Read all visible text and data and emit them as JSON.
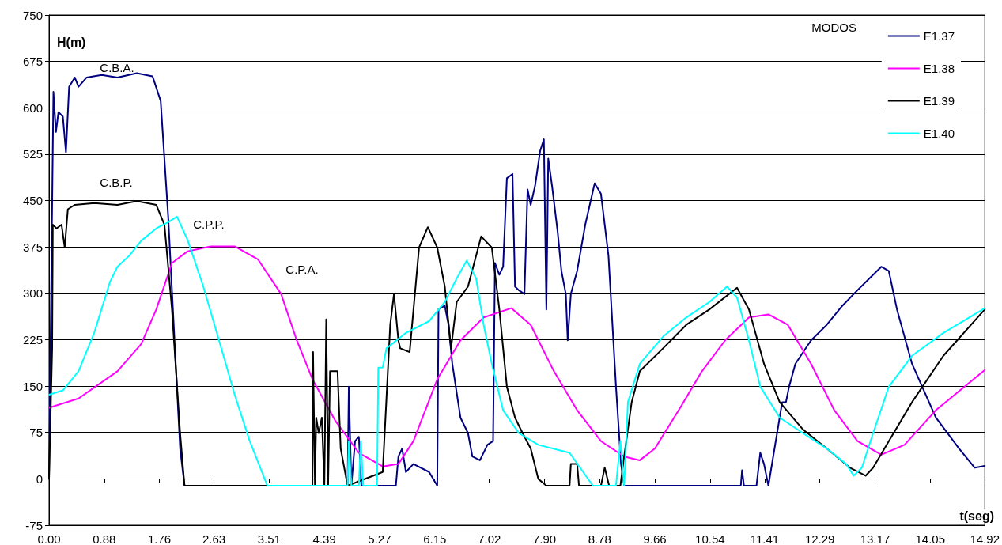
{
  "chart_data": {
    "type": "line",
    "xlabel": "t(seg)",
    "ylabel": "H(m)",
    "legend_title": "MODOS",
    "legend": "top right",
    "grid": "y",
    "marker": "none",
    "line_style": "solid",
    "xlim": [
      0,
      14.92
    ],
    "ylim": [
      -75,
      750
    ],
    "xticks": [
      {
        "value": 0,
        "label": "0.00"
      },
      {
        "value": 0.88,
        "label": "0.88"
      },
      {
        "value": 1.76,
        "label": "1.76"
      },
      {
        "value": 2.63,
        "label": "2.63"
      },
      {
        "value": 3.51,
        "label": "3.51"
      },
      {
        "value": 4.39,
        "label": "4.39"
      },
      {
        "value": 5.27,
        "label": "5.27"
      },
      {
        "value": 6.15,
        "label": "6.15"
      },
      {
        "value": 7.02,
        "label": "7.02"
      },
      {
        "value": 7.9,
        "label": "7.90"
      },
      {
        "value": 8.78,
        "label": "8.78"
      },
      {
        "value": 9.66,
        "label": "9.66"
      },
      {
        "value": 10.54,
        "label": "10.54"
      },
      {
        "value": 11.41,
        "label": "11.41"
      },
      {
        "value": 12.29,
        "label": "12.29"
      },
      {
        "value": 13.17,
        "label": "13.17"
      },
      {
        "value": 14.05,
        "label": "14.05"
      },
      {
        "value": 14.92,
        "label": "14.92"
      }
    ],
    "yticks": [
      -75,
      0,
      75,
      150,
      225,
      300,
      375,
      450,
      525,
      600,
      675,
      750
    ],
    "annotations": [
      "C.B.A.",
      "C.B.P.",
      "C.P.P.",
      "C.P.A."
    ],
    "series": [
      {
        "name": "E1.37",
        "color": "#000080",
        "x": [
          0,
          0.07,
          0.11,
          0.15,
          0.22,
          0.27,
          0.32,
          0.41,
          0.47,
          0.6,
          0.84,
          1.09,
          1.4,
          1.65,
          1.78,
          1.9,
          2.02,
          2.09,
          2.16,
          4.76,
          4.78,
          4.82,
          4.88,
          4.94,
          4.98,
          5.53,
          5.57,
          5.63,
          5.69,
          5.81,
          6.06,
          6.19,
          6.21,
          6.31,
          6.37,
          6.43,
          6.56,
          6.68,
          6.75,
          6.87,
          6.99,
          7.08,
          7.11,
          7.18,
          7.24,
          7.3,
          7.39,
          7.43,
          7.49,
          7.58,
          7.63,
          7.68,
          7.75,
          7.83,
          7.89,
          7.93,
          7.96,
          8.02,
          8.11,
          8.17,
          8.24,
          8.27,
          8.32,
          8.42,
          8.55,
          8.7,
          8.8,
          8.92,
          9.04,
          9.12,
          9.17,
          11.03,
          11.05,
          11.08,
          11.28,
          11.34,
          11.4,
          11.47,
          11.69,
          11.75,
          11.8,
          11.9,
          12.15,
          12.4,
          12.65,
          12.89,
          13.27,
          13.39,
          13.52,
          13.76,
          14.14,
          14.51,
          14.76,
          14.92
        ],
        "values": [
          0,
          626,
          561,
          593,
          586,
          528,
          634,
          649,
          634,
          649,
          653,
          649,
          656,
          651,
          611,
          424,
          186,
          49,
          -11,
          -11,
          149,
          -11,
          61,
          68,
          -11,
          -11,
          36,
          49,
          11,
          24,
          11,
          -11,
          274,
          280,
          249,
          186,
          99,
          74,
          36,
          30,
          55,
          61,
          349,
          330,
          343,
          486,
          493,
          311,
          305,
          299,
          468,
          443,
          474,
          530,
          549,
          274,
          518,
          474,
          399,
          336,
          299,
          224,
          299,
          336,
          411,
          478,
          461,
          361,
          149,
          24,
          -11,
          -11,
          14,
          -11,
          -11,
          42,
          24,
          -11,
          124,
          124,
          149,
          186,
          224,
          249,
          280,
          305,
          343,
          336,
          274,
          186,
          99,
          49,
          18,
          21
        ]
      },
      {
        "name": "E1.38",
        "color": "#ff00ff",
        "x": [
          0,
          0.47,
          1.09,
          1.47,
          1.71,
          1.96,
          2.21,
          2.58,
          2.96,
          3.33,
          3.7,
          3.95,
          4.2,
          4.57,
          4.94,
          5.32,
          5.57,
          5.81,
          6.19,
          6.56,
          6.93,
          7.37,
          7.68,
          8.05,
          8.42,
          8.8,
          9.17,
          9.42,
          9.66,
          10.04,
          10.41,
          10.78,
          11.16,
          11.47,
          11.78,
          12.15,
          12.52,
          12.89,
          13.27,
          13.64,
          14.14,
          14.92
        ],
        "values": [
          115,
          130,
          174,
          218,
          274,
          349,
          368,
          376,
          376,
          355,
          299,
          224,
          161,
          93,
          42,
          20,
          24,
          61,
          161,
          224,
          261,
          276,
          249,
          174,
          111,
          61,
          36,
          30,
          49,
          111,
          174,
          224,
          261,
          266,
          249,
          186,
          111,
          61,
          39,
          55,
          111,
          176
        ]
      },
      {
        "name": "E1.39",
        "color": "#000000",
        "x": [
          0,
          0.05,
          0.06,
          0.12,
          0.2,
          0.25,
          0.3,
          0.41,
          0.72,
          1.09,
          1.4,
          1.71,
          1.84,
          1.96,
          2.09,
          2.16,
          4.2,
          4.21,
          4.24,
          4.26,
          4.3,
          4.35,
          4.39,
          4.42,
          4.45,
          4.48,
          4.6,
          4.65,
          4.76,
          5.32,
          5.44,
          5.5,
          5.57,
          5.6,
          5.75,
          5.9,
          6.04,
          6.19,
          6.31,
          6.41,
          6.5,
          6.68,
          6.89,
          7.06,
          7.18,
          7.3,
          7.43,
          7.55,
          7.68,
          7.8,
          7.93,
          8.3,
          8.32,
          8.42,
          8.45,
          8.8,
          8.86,
          8.93,
          9.11,
          9.17,
          9.29,
          9.42,
          9.79,
          10.16,
          10.53,
          10.97,
          11.16,
          11.4,
          11.65,
          12.02,
          12.4,
          12.77,
          13.02,
          13.14,
          13.39,
          13.76,
          14.26,
          14.92
        ],
        "values": [
          0,
          211,
          411,
          405,
          411,
          374,
          436,
          443,
          446,
          443,
          449,
          443,
          411,
          274,
          74,
          -11,
          -11,
          205,
          -11,
          99,
          74,
          99,
          -11,
          258,
          -11,
          174,
          174,
          49,
          -11,
          11,
          249,
          299,
          224,
          211,
          205,
          374,
          407,
          374,
          311,
          211,
          286,
          311,
          392,
          374,
          274,
          149,
          99,
          74,
          49,
          0,
          -11,
          -11,
          24,
          24,
          -11,
          -11,
          18,
          -11,
          -11,
          36,
          124,
          174,
          211,
          249,
          274,
          309,
          274,
          186,
          124,
          80,
          49,
          18,
          5,
          18,
          61,
          124,
          199,
          274
        ]
      },
      {
        "name": "E1.40",
        "color": "#00ffff",
        "x": [
          0,
          0.22,
          0.47,
          0.72,
          0.97,
          1.09,
          1.28,
          1.47,
          1.71,
          1.9,
          2.04,
          2.21,
          2.46,
          2.71,
          2.96,
          3.2,
          3.48,
          4.7,
          4.76,
          4.78,
          4.82,
          4.94,
          4.97,
          5.01,
          5.23,
          5.25,
          5.32,
          5.38,
          5.69,
          6.06,
          6.31,
          6.5,
          6.66,
          6.81,
          6.93,
          7.06,
          7.24,
          7.49,
          7.8,
          8.3,
          8.67,
          9.04,
          9.11,
          9.17,
          9.23,
          9.42,
          9.79,
          10.16,
          10.53,
          10.81,
          10.97,
          11.16,
          11.34,
          11.65,
          12.02,
          12.4,
          12.71,
          12.83,
          12.96,
          13.14,
          13.39,
          13.76,
          14.26,
          14.92
        ],
        "values": [
          136,
          143,
          174,
          236,
          318,
          343,
          361,
          385,
          405,
          415,
          424,
          386,
          311,
          224,
          136,
          61,
          -11,
          -11,
          -11,
          61,
          -11,
          -11,
          61,
          -11,
          -11,
          180,
          180,
          211,
          236,
          255,
          286,
          324,
          353,
          324,
          249,
          186,
          111,
          74,
          55,
          42,
          -11,
          -11,
          61,
          -11,
          124,
          186,
          230,
          261,
          286,
          311,
          293,
          224,
          149,
          99,
          74,
          49,
          24,
          5,
          18,
          74,
          149,
          199,
          236,
          276
        ]
      }
    ]
  }
}
